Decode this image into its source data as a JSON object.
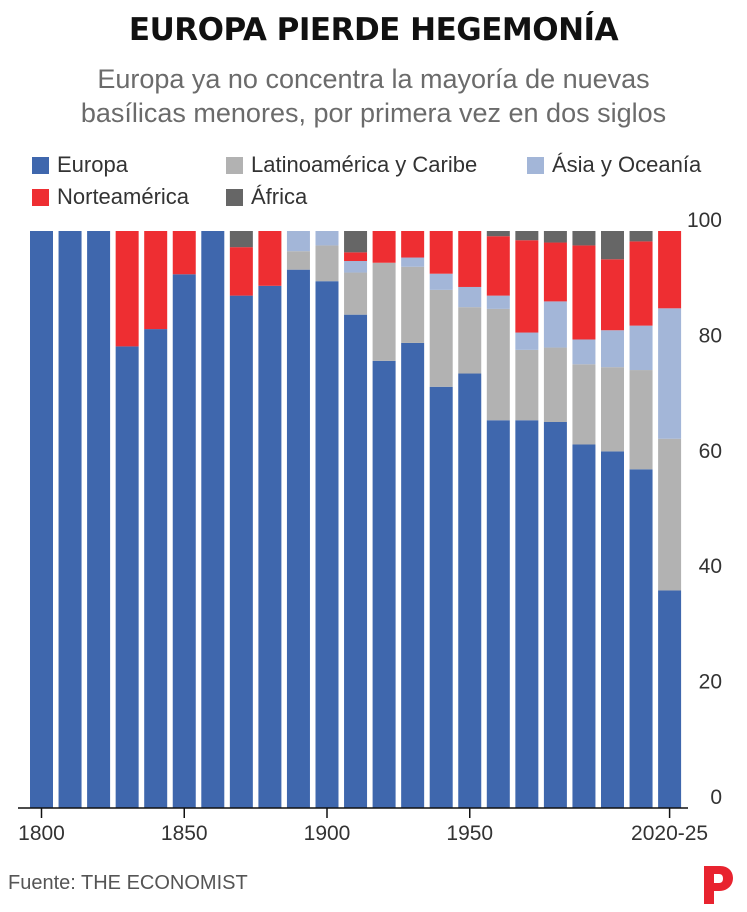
{
  "header": {
    "title": "EUROPA PIERDE HEGEMONÍA",
    "subtitle_line1": "Europa ya no concentra la mayoría de nuevas",
    "subtitle_line2": "basílicas menores, por primera vez en dos siglos"
  },
  "footer": {
    "source": "Fuente: THE ECONOMIST"
  },
  "logo": {
    "icon": "red-p-logo-icon",
    "color": "#e8232f"
  },
  "chart_data": {
    "type": "bar",
    "stacked": true,
    "categories": [
      "1800",
      "1810",
      "1820",
      "1830",
      "1840",
      "1850",
      "1860",
      "1870",
      "1880",
      "1890",
      "1900",
      "1910",
      "1920",
      "1930",
      "1940",
      "1950",
      "1960",
      "1970",
      "1980",
      "1990",
      "2000",
      "2010",
      "2020-25"
    ],
    "series": [
      {
        "name": "Europa",
        "color": "#3f67ad",
        "values": [
          100,
          100,
          100,
          80,
          83,
          92.5,
          100,
          88.8,
          90.5,
          93.3,
          91.3,
          85.5,
          77.5,
          80.6,
          73,
          75.3,
          67.2,
          67.2,
          66.9,
          63,
          61.8,
          58.7,
          37.7
        ]
      },
      {
        "name": "Latinoamérica y Caribe",
        "color": "#b2b2b2",
        "values": [
          0,
          0,
          0,
          0,
          0,
          0,
          0,
          0,
          0,
          3.2,
          6.2,
          7.3,
          17,
          13.2,
          16.8,
          11.5,
          19.3,
          12.2,
          12.9,
          13.9,
          14.6,
          17.2,
          26.3
        ]
      },
      {
        "name": "Ásia y Oceanía",
        "color": "#a3b6d8",
        "values": [
          0,
          0,
          0,
          0,
          0,
          0,
          0,
          0,
          0,
          3.5,
          2.5,
          2,
          0,
          1.6,
          2.8,
          3.5,
          2.3,
          3,
          8,
          4.3,
          6.4,
          7.7,
          22.6
        ]
      },
      {
        "name": "Norteamérica",
        "color": "#ee2e32",
        "values": [
          0,
          0,
          0,
          20,
          17,
          7.5,
          0,
          8.4,
          9.5,
          0,
          0,
          1.5,
          5.5,
          4.6,
          7.4,
          9.7,
          10.3,
          16,
          10.2,
          16.3,
          12.3,
          14.6,
          13.4
        ]
      },
      {
        "name": "África",
        "color": "#666666",
        "values": [
          0,
          0,
          0,
          0,
          0,
          0,
          0,
          2.8,
          0,
          0,
          0,
          3.7,
          0,
          0,
          0,
          0,
          0.9,
          1.6,
          2,
          2.5,
          4.9,
          1.8,
          0
        ]
      }
    ],
    "x_tick_labels": [
      "1800",
      "1850",
      "1900",
      "1950",
      "2020-25"
    ],
    "y_ticks": [
      0,
      20,
      40,
      60,
      80,
      100
    ],
    "ylim": [
      0,
      100
    ],
    "y_axis_side": "right",
    "legend_position": "top"
  }
}
